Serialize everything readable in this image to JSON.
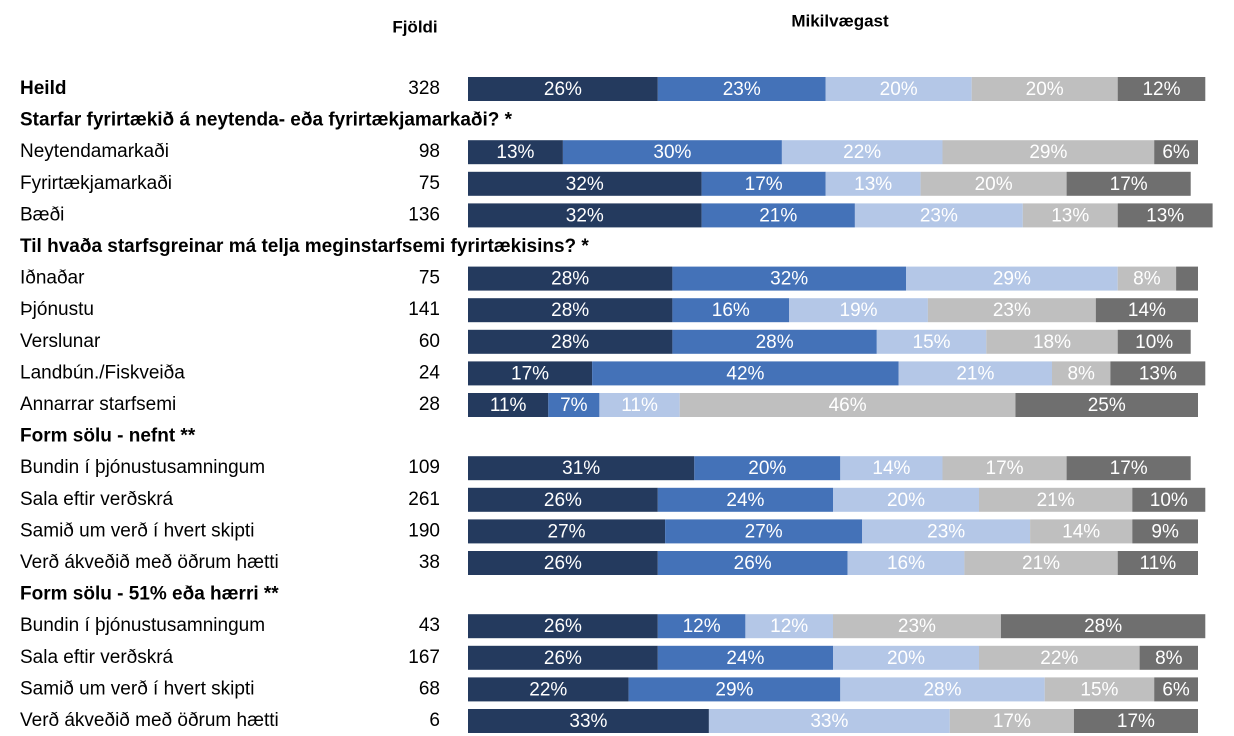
{
  "chart_data": {
    "type": "stacked-bar",
    "headers": [
      "Fjöldi",
      "Mikilvægast"
    ],
    "colors": [
      "#243a5e",
      "#4472b8",
      "#b4c7e7",
      "#bfbfbf",
      "#6f6f6f"
    ],
    "rows": [
      {
        "label": "Heild",
        "bold": true,
        "n": 328,
        "values": [
          26,
          23,
          20,
          20,
          12
        ],
        "value_labels": [
          "26%",
          "23%",
          "20%",
          "20%",
          "12%"
        ]
      },
      {
        "label": "Starfar fyrirtækið á neytenda- eða fyrirtækjamarkaði? *"
      },
      {
        "label": "Neytendamarkaði",
        "n": 98,
        "values": [
          13,
          30,
          22,
          29,
          6
        ],
        "value_labels": [
          "13%",
          "30%",
          "22%",
          "29%",
          "6%"
        ]
      },
      {
        "label": "Fyrirtækjamarkaði",
        "n": 75,
        "values": [
          32,
          17,
          13,
          20,
          17
        ],
        "value_labels": [
          "32%",
          "17%",
          "13%",
          "20%",
          "17%"
        ]
      },
      {
        "label": "Bæði",
        "n": 136,
        "values": [
          32,
          21,
          23,
          13,
          13
        ],
        "value_labels": [
          "32%",
          "21%",
          "23%",
          "13%",
          "13%"
        ]
      },
      {
        "label": "Til hvaða starfsgreinar má telja meginstarfsemi fyrirtækisins? *"
      },
      {
        "label": "Iðnaðar",
        "n": 75,
        "values": [
          28,
          32,
          29,
          8,
          3
        ],
        "value_labels": [
          "28%",
          "32%",
          "29%",
          "8%",
          null
        ]
      },
      {
        "label": "Þjónustu",
        "n": 141,
        "values": [
          28,
          16,
          19,
          23,
          14
        ],
        "value_labels": [
          "28%",
          "16%",
          "19%",
          "23%",
          "14%"
        ]
      },
      {
        "label": "Verslunar",
        "n": 60,
        "values": [
          28,
          28,
          15,
          18,
          10
        ],
        "value_labels": [
          "28%",
          "28%",
          "15%",
          "18%",
          "10%"
        ]
      },
      {
        "label": "Landbún./Fiskveiða",
        "n": 24,
        "values": [
          17,
          42,
          21,
          8,
          13
        ],
        "value_labels": [
          "17%",
          "42%",
          "21%",
          "8%",
          "13%"
        ]
      },
      {
        "label": "Annarrar starfsemi",
        "n": 28,
        "values": [
          11,
          7,
          11,
          46,
          25
        ],
        "value_labels": [
          "11%",
          "7%",
          "11%",
          "46%",
          "25%"
        ]
      },
      {
        "label": "Form sölu - nefnt **"
      },
      {
        "label": "Bundin í þjónustusamningum",
        "n": 109,
        "values": [
          31,
          20,
          14,
          17,
          17
        ],
        "value_labels": [
          "31%",
          "20%",
          "14%",
          "17%",
          "17%"
        ]
      },
      {
        "label": "Sala eftir verðskrá",
        "n": 261,
        "values": [
          26,
          24,
          20,
          21,
          10
        ],
        "value_labels": [
          "26%",
          "24%",
          "20%",
          "21%",
          "10%"
        ]
      },
      {
        "label": "Samið um verð í hvert skipti",
        "n": 190,
        "values": [
          27,
          27,
          23,
          14,
          9
        ],
        "value_labels": [
          "27%",
          "27%",
          "23%",
          "14%",
          "9%"
        ]
      },
      {
        "label": "Verð ákveðið með öðrum hætti",
        "n": 38,
        "values": [
          26,
          26,
          16,
          21,
          11
        ],
        "value_labels": [
          "26%",
          "26%",
          "16%",
          "21%",
          "11%"
        ]
      },
      {
        "label": "Form sölu - 51% eða hærri **"
      },
      {
        "label": "Bundin í þjónustusamningum",
        "n": 43,
        "values": [
          26,
          12,
          12,
          23,
          28
        ],
        "value_labels": [
          "26%",
          "12%",
          "12%",
          "23%",
          "28%"
        ]
      },
      {
        "label": "Sala eftir verðskrá",
        "n": 167,
        "values": [
          26,
          24,
          20,
          22,
          8
        ],
        "value_labels": [
          "26%",
          "24%",
          "20%",
          "22%",
          "8%"
        ]
      },
      {
        "label": "Samið um verð í hvert skipti",
        "n": 68,
        "values": [
          22,
          29,
          28,
          15,
          6
        ],
        "value_labels": [
          "22%",
          "29%",
          "28%",
          "15%",
          "6%"
        ]
      },
      {
        "label": "Verð ákveðið með öðrum hætti",
        "n": 6,
        "values": [
          33,
          null,
          33,
          17,
          17
        ],
        "value_labels": [
          "33%",
          null,
          "33%",
          "17%",
          "17%"
        ]
      }
    ]
  }
}
